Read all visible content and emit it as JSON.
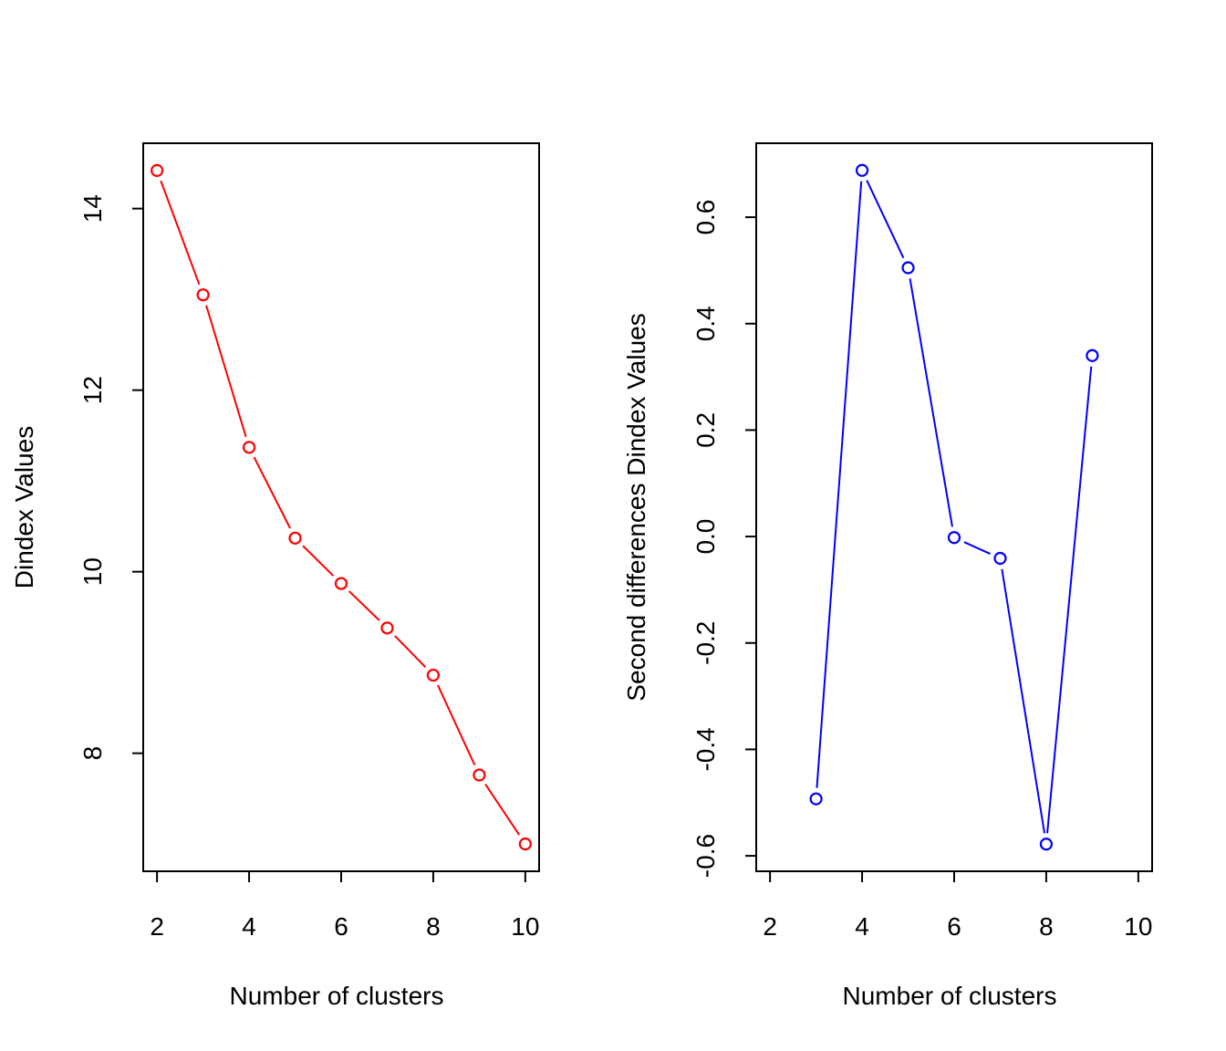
{
  "chart_data": [
    {
      "type": "line",
      "markers": "open-circle",
      "color": "#ff0000",
      "x": [
        2,
        3,
        4,
        5,
        6,
        7,
        8,
        9,
        10
      ],
      "y": [
        14.42,
        13.05,
        11.37,
        10.37,
        9.87,
        9.38,
        8.86,
        7.76,
        7.0
      ],
      "xlabel": "Number of clusters",
      "ylabel": "Dindex Values",
      "xlim": [
        1.7,
        10.3
      ],
      "ylim": [
        6.7,
        14.72
      ],
      "xticks": [
        2,
        4,
        6,
        8,
        10
      ],
      "xtick_labels": [
        "2",
        "4",
        "6",
        "8",
        "10"
      ],
      "yticks": [
        8,
        10,
        12,
        14
      ],
      "ytick_labels": [
        "8",
        "10",
        "12",
        "14"
      ],
      "grid": false,
      "legend": "none"
    },
    {
      "type": "line",
      "markers": "open-circle",
      "color": "#0000ff",
      "x": [
        3,
        4,
        5,
        6,
        7,
        8,
        9
      ],
      "y": [
        -0.493,
        0.688,
        0.505,
        -0.002,
        -0.041,
        -0.578,
        0.34
      ],
      "xlabel": "Number of clusters",
      "ylabel": "Second differences Dindex Values",
      "xlim": [
        1.7,
        10.3
      ],
      "ylim": [
        -0.629,
        0.739
      ],
      "xticks": [
        2,
        4,
        6,
        8,
        10
      ],
      "xtick_labels": [
        "2",
        "4",
        "6",
        "8",
        "10"
      ],
      "yticks": [
        -0.6,
        -0.4,
        -0.2,
        0.0,
        0.2,
        0.4,
        0.6
      ],
      "ytick_labels": [
        "-0.6",
        "-0.4",
        "-0.2",
        "0.0",
        "0.2",
        "0.4",
        "0.6"
      ],
      "grid": false,
      "legend": "none"
    }
  ]
}
